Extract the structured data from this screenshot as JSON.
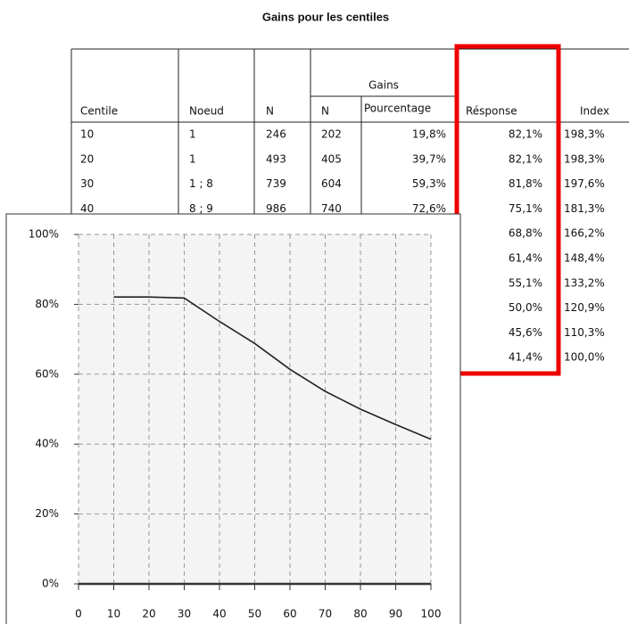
{
  "title": "Gains pour les centiles",
  "table": {
    "group_header": "Gains",
    "header": [
      "Centile",
      "Noeud",
      "N",
      "N",
      "Pourcentage",
      "Résponse",
      "Index"
    ],
    "rows": [
      [
        "10",
        "1",
        "246",
        "202",
        "19,8%",
        "82,1%",
        "198,3%"
      ],
      [
        "20",
        "1",
        "493",
        "405",
        "39,7%",
        "82,1%",
        "198,3%"
      ],
      [
        "30",
        "1 ; 8",
        "739",
        "604",
        "59,3%",
        "81,8%",
        "197,6%"
      ],
      [
        "40",
        "8 ; 9",
        "986",
        "740",
        "72,6%",
        "75,1%",
        "181,3%"
      ],
      [
        null,
        null,
        null,
        null,
        null,
        "68,8%",
        "166,2%"
      ],
      [
        null,
        null,
        null,
        null,
        null,
        "61,4%",
        "148,4%"
      ],
      [
        null,
        null,
        null,
        null,
        null,
        "55,1%",
        "133,2%"
      ],
      [
        null,
        null,
        null,
        null,
        null,
        "50,0%",
        "120,9%"
      ],
      [
        null,
        null,
        null,
        null,
        null,
        "45,6%",
        "110,3%"
      ],
      [
        null,
        null,
        null,
        null,
        null,
        "41,4%",
        "100,0%"
      ]
    ]
  },
  "chart_data": {
    "type": "line",
    "x": [
      10,
      20,
      30,
      40,
      50,
      60,
      70,
      80,
      90,
      100
    ],
    "series": [
      {
        "color": "#222222",
        "values": [
          82.1,
          82.1,
          81.8,
          75.1,
          68.8,
          61.4,
          55.1,
          50.0,
          45.6,
          41.4
        ]
      }
    ],
    "xlim": [
      0,
      100
    ],
    "xticks": [
      0,
      10,
      20,
      30,
      40,
      50,
      60,
      70,
      80,
      90,
      100
    ],
    "ylim": [
      0,
      100
    ],
    "yticks": [
      {
        "value": 0,
        "label": "0%"
      },
      {
        "value": 20,
        "label": "20%"
      },
      {
        "value": 40,
        "label": "40%"
      },
      {
        "value": 60,
        "label": "60%"
      },
      {
        "value": 80,
        "label": "80%"
      },
      {
        "value": 100,
        "label": "100%"
      }
    ],
    "grid": true
  }
}
